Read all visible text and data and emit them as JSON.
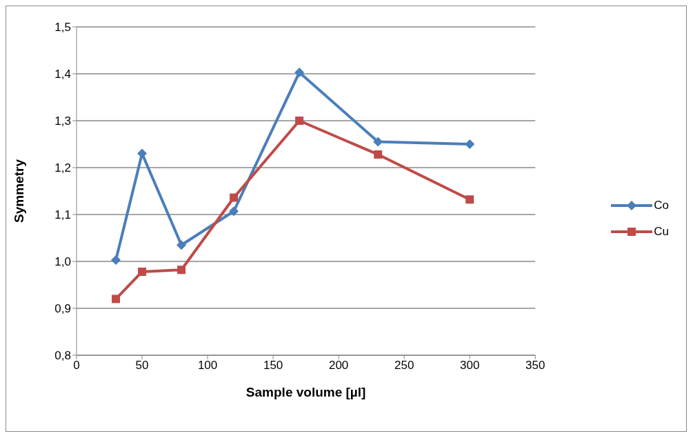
{
  "chart_data": {
    "type": "line",
    "xlabel": "Sample volume [µl]",
    "ylabel": "Symmetry",
    "x": [
      30,
      50,
      80,
      120,
      170,
      230,
      300
    ],
    "series": [
      {
        "name": "Co",
        "color": "#4a7ebb",
        "marker": "diamond",
        "values": [
          1.003,
          1.23,
          1.035,
          1.107,
          1.403,
          1.255,
          1.25
        ]
      },
      {
        "name": "Cu",
        "color": "#be4b48",
        "marker": "square",
        "values": [
          0.92,
          0.978,
          0.982,
          1.136,
          1.3,
          1.228,
          1.132
        ]
      }
    ],
    "xlim": [
      0,
      350
    ],
    "xticks": [
      0,
      50,
      100,
      150,
      200,
      250,
      300,
      350
    ],
    "ylim": [
      0.8,
      1.5
    ],
    "yticks": [
      {
        "value": 0.8,
        "label": "0,8"
      },
      {
        "value": 0.9,
        "label": "0,9"
      },
      {
        "value": 1.0,
        "label": "1,0"
      },
      {
        "value": 1.1,
        "label": "1,1"
      },
      {
        "value": 1.2,
        "label": "1,2"
      },
      {
        "value": 1.3,
        "label": "1,3"
      },
      {
        "value": 1.4,
        "label": "1,4"
      },
      {
        "value": 1.5,
        "label": "1,5"
      }
    ],
    "grid": "y",
    "legend": "right",
    "line_style": "solid"
  }
}
